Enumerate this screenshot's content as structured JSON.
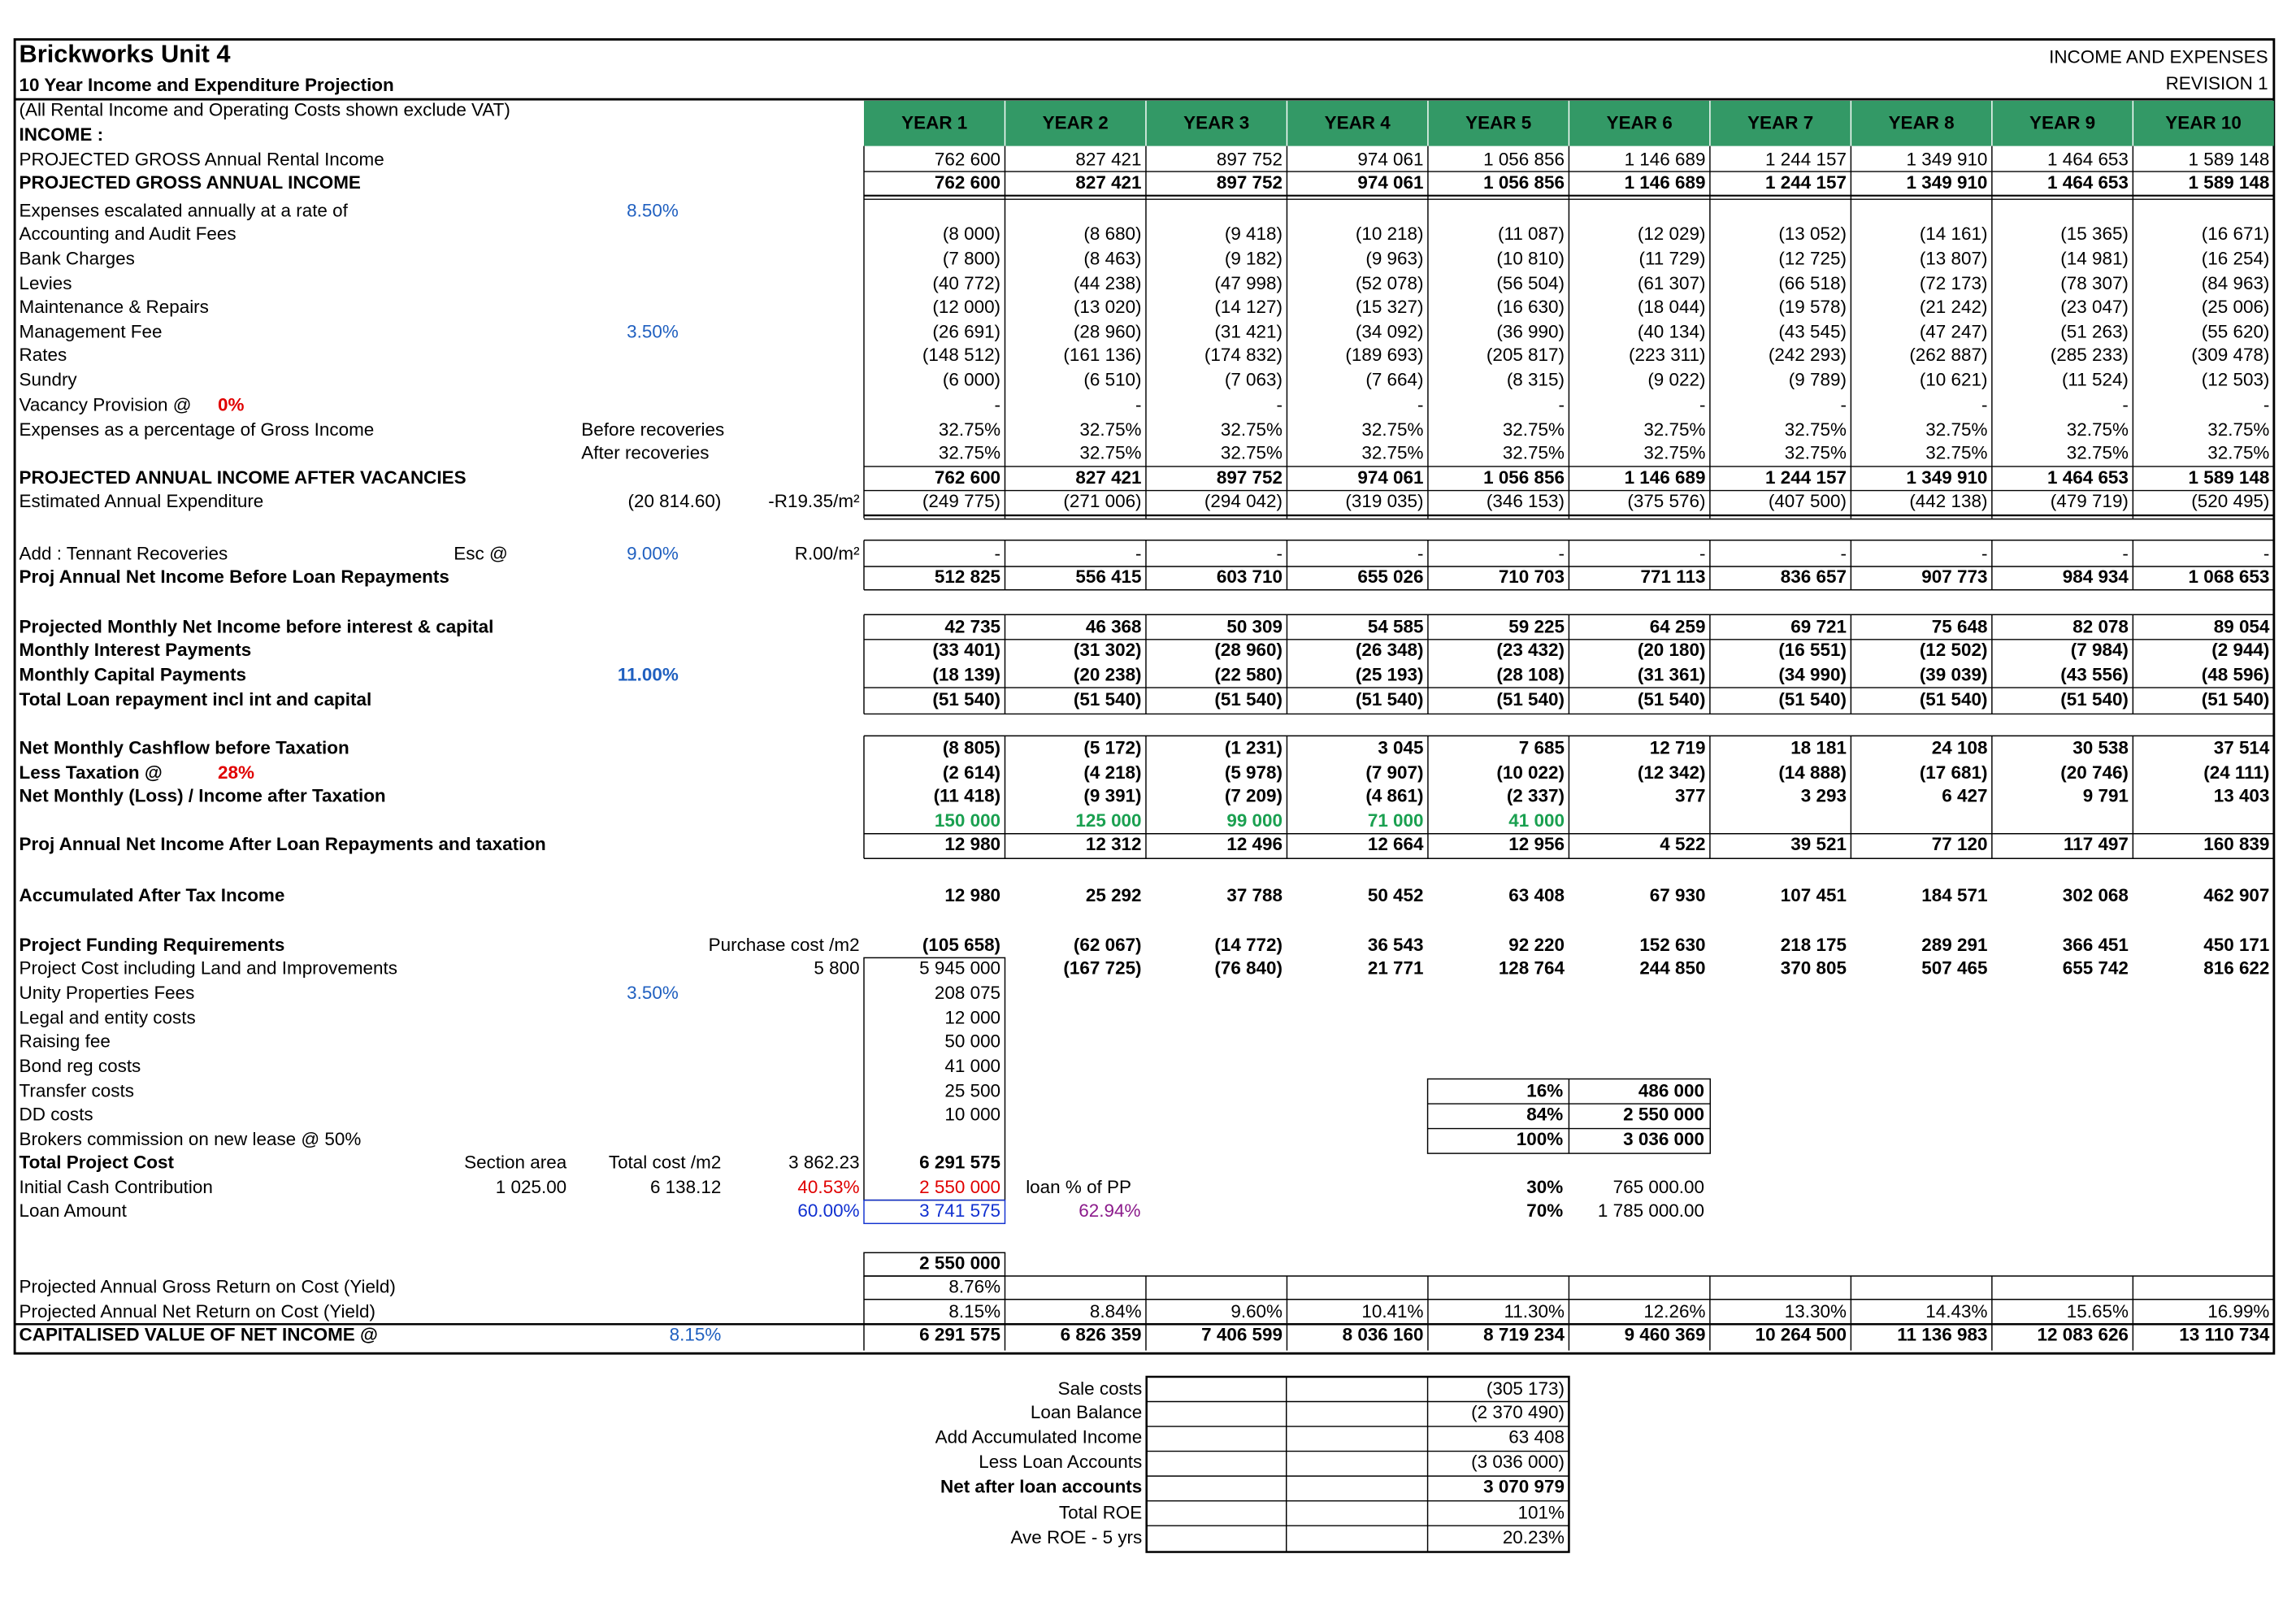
{
  "header": {
    "title": "Brickworks Unit 4",
    "subtitle": "10 Year Income and Expenditure Projection",
    "right1": "INCOME AND EXPENSES",
    "right2": "REVISION 1"
  },
  "years": [
    "YEAR 1",
    "YEAR 2",
    "YEAR 3",
    "YEAR 4",
    "YEAR 5",
    "YEAR 6",
    "YEAR 7",
    "YEAR 8",
    "YEAR 9",
    "YEAR 10"
  ],
  "rows": [
    {
      "a": "(All Rental Income and Operating Costs shown exclude VAT)"
    },
    {
      "a": "INCOME :"
    },
    {
      "a": "PROJECTED GROSS Annual Rental Income",
      "v": [
        "762 600",
        "827 421",
        "897 752",
        "974 061",
        "1 056 856",
        "1 146 689",
        "1 244 157",
        "1 349 910",
        "1 464 653",
        "1 589 148"
      ]
    },
    {
      "a": "PROJECTED GROSS ANNUAL INCOME",
      "v": [
        "762 600",
        "827 421",
        "897 752",
        "974 061",
        "1 056 856",
        "1 146 689",
        "1 244 157",
        "1 349 910",
        "1 464 653",
        "1 589 148"
      ]
    },
    {
      "a": "Expenses escalated annually at a rate of",
      "r": "8.50%"
    },
    {
      "a": "Accounting and Audit Fees",
      "v": [
        "(8 000)",
        "(8 680)",
        "(9 418)",
        "(10 218)",
        "(11 087)",
        "(12 029)",
        "(13 052)",
        "(14 161)",
        "(15 365)",
        "(16 671)"
      ]
    },
    {
      "a": "Bank Charges",
      "v": [
        "(7 800)",
        "(8 463)",
        "(9 182)",
        "(9 963)",
        "(10 810)",
        "(11 729)",
        "(12 725)",
        "(13 807)",
        "(14 981)",
        "(16 254)"
      ]
    },
    {
      "a": "Levies",
      "v": [
        "(40 772)",
        "(44 238)",
        "(47 998)",
        "(52 078)",
        "(56 504)",
        "(61 307)",
        "(66 518)",
        "(72 173)",
        "(78 307)",
        "(84 963)"
      ]
    },
    {
      "a": "Maintenance & Repairs",
      "v": [
        "(12 000)",
        "(13 020)",
        "(14 127)",
        "(15 327)",
        "(16 630)",
        "(18 044)",
        "(19 578)",
        "(21 242)",
        "(23 047)",
        "(25 006)"
      ]
    },
    {
      "a": "Management Fee",
      "r": "3.50%",
      "v": [
        "(26 691)",
        "(28 960)",
        "(31 421)",
        "(34 092)",
        "(36 990)",
        "(40 134)",
        "(43 545)",
        "(47 247)",
        "(51 263)",
        "(55 620)"
      ]
    },
    {
      "a": "Rates",
      "v": [
        "(148 512)",
        "(161 136)",
        "(174 832)",
        "(189 693)",
        "(205 817)",
        "(223 311)",
        "(242 293)",
        "(262 887)",
        "(285 233)",
        "(309 478)"
      ]
    },
    {
      "a": "Sundry",
      "v": [
        "(6 000)",
        "(6 510)",
        "(7 063)",
        "(7 664)",
        "(8 315)",
        "(9 022)",
        "(9 789)",
        "(10 621)",
        "(11 524)",
        "(12 503)"
      ]
    },
    {
      "a": "Vacancy Provision @",
      "inl": "0%",
      "v": [
        "-",
        "-",
        "-",
        "-",
        "-",
        "-",
        "-",
        "-",
        "-",
        "-"
      ]
    },
    {
      "a": "Expenses as a percentage of Gross Income",
      "bl": "Before recoveries",
      "v": [
        "32.75%",
        "32.75%",
        "32.75%",
        "32.75%",
        "32.75%",
        "32.75%",
        "32.75%",
        "32.75%",
        "32.75%",
        "32.75%"
      ]
    },
    {
      "bl": "After recoveries",
      "v": [
        "32.75%",
        "32.75%",
        "32.75%",
        "32.75%",
        "32.75%",
        "32.75%",
        "32.75%",
        "32.75%",
        "32.75%",
        "32.75%"
      ]
    },
    {
      "a": "PROJECTED ANNUAL INCOME AFTER VACANCIES",
      "v": [
        "762 600",
        "827 421",
        "897 752",
        "974 061",
        "1 056 856",
        "1 146 689",
        "1 244 157",
        "1 349 910",
        "1 464 653",
        "1 589 148"
      ]
    },
    {
      "a": "Estimated Annual Expenditure",
      "s": "(20 814.60)",
      "t": "-R19.35/m²",
      "v": [
        "(249 775)",
        "(271 006)",
        "(294 042)",
        "(319 035)",
        "(346 153)",
        "(375 576)",
        "(407 500)",
        "(442 138)",
        "(479 719)",
        "(520 495)"
      ]
    },
    {
      "a": "Add : Tennant Recoveries",
      "p": "Esc @",
      "r": "9.00%",
      "t": "R.00/m²",
      "v": [
        "-",
        "-",
        "-",
        "-",
        "-",
        "-",
        "-",
        "-",
        "-",
        "-"
      ]
    },
    {
      "a": "Proj Annual Net Income Before Loan Repayments",
      "v": [
        "512 825",
        "556 415",
        "603 710",
        "655 026",
        "710 703",
        "771 113",
        "836 657",
        "907 773",
        "984 934",
        "1 068 653"
      ]
    },
    {
      "a": "Projected Monthly Net Income before interest & capital",
      "v": [
        "42 735",
        "46 368",
        "50 309",
        "54 585",
        "59 225",
        "64 259",
        "69 721",
        "75 648",
        "82 078",
        "89 054"
      ]
    },
    {
      "a": "Monthly Interest Payments",
      "v": [
        "(33 401)",
        "(31 302)",
        "(28 960)",
        "(26 348)",
        "(23 432)",
        "(20 180)",
        "(16 551)",
        "(12 502)",
        "(7 984)",
        "(2 944)"
      ]
    },
    {
      "a": "Monthly Capital Payments",
      "r": "11.00%",
      "v": [
        "(18 139)",
        "(20 238)",
        "(22 580)",
        "(25 193)",
        "(28 108)",
        "(31 361)",
        "(34 990)",
        "(39 039)",
        "(43 556)",
        "(48 596)"
      ]
    },
    {
      "a": "Total Loan repayment incl int and capital",
      "v": [
        "(51 540)",
        "(51 540)",
        "(51 540)",
        "(51 540)",
        "(51 540)",
        "(51 540)",
        "(51 540)",
        "(51 540)",
        "(51 540)",
        "(51 540)"
      ]
    },
    {
      "a": "Net Monthly Cashflow before Taxation",
      "v": [
        "(8 805)",
        "(5 172)",
        "(1 231)",
        "3 045",
        "7 685",
        "12 719",
        "18 181",
        "24 108",
        "30 538",
        "37 514"
      ]
    },
    {
      "a": "Less Taxation @",
      "inl": "28%",
      "v": [
        "(2 614)",
        "(4 218)",
        "(5 978)",
        "(7 907)",
        "(10 022)",
        "(12 342)",
        "(14 888)",
        "(17 681)",
        "(20 746)",
        "(24 111)"
      ]
    },
    {
      "a": "Net Monthly (Loss) / Income after Taxation",
      "v": [
        "(11 418)",
        "(9 391)",
        "(7 209)",
        "(4 861)",
        "(2 337)",
        "377",
        "3 293",
        "6 427",
        "9 791",
        "13 403"
      ]
    },
    {
      "v": [
        "150 000",
        "125 000",
        "99 000",
        "71 000",
        "41 000",
        null,
        null,
        null,
        null,
        null
      ]
    },
    {
      "a": "Proj Annual Net Income After Loan Repayments and taxation",
      "v": [
        "12 980",
        "12 312",
        "12 496",
        "12 664",
        "12 956",
        "4 522",
        "39 521",
        "77 120",
        "117 497",
        "160 839"
      ]
    },
    {
      "a": "Accumulated After Tax Income",
      "v": [
        "12 980",
        "25 292",
        "37 788",
        "50 452",
        "63 408",
        "67 930",
        "107 451",
        "184 571",
        "302 068",
        "462 907"
      ]
    },
    {
      "a": "Project Funding Requirements",
      "t": "Purchase cost /m2",
      "v": [
        "(105 658)",
        "(62 067)",
        "(14 772)",
        "36 543",
        "92 220",
        "152 630",
        "218 175",
        "289 291",
        "366 451",
        "450 171"
      ]
    },
    {
      "a": "Project Cost including Land and Improvements",
      "t": "5 800",
      "v": [
        "5 945 000",
        "(167 725)",
        "(76 840)",
        "21 771",
        "128 764",
        "244 850",
        "370 805",
        "507 465",
        "655 742",
        "816 622"
      ]
    },
    {
      "a": "Unity Properties Fees",
      "r": "3.50%",
      "v": [
        "208 075",
        null,
        null,
        null,
        null,
        null,
        null,
        null,
        null,
        null
      ]
    },
    {
      "a": "Legal and entity costs",
      "v": [
        "12 000",
        null,
        null,
        null,
        null,
        null,
        null,
        null,
        null,
        null
      ]
    },
    {
      "a": "Raising fee",
      "v": [
        "50 000",
        null,
        null,
        null,
        null,
        null,
        null,
        null,
        null,
        null
      ]
    },
    {
      "a": "Bond reg costs",
      "v": [
        "41 000",
        null,
        null,
        null,
        null,
        null,
        null,
        null,
        null,
        null
      ]
    },
    {
      "a": "Transfer costs",
      "u": "16%",
      "w": "486 000",
      "v": [
        "25 500",
        null,
        null,
        null,
        null,
        null,
        null,
        null,
        null,
        null
      ]
    },
    {
      "a": "DD costs",
      "u": "84%",
      "w": "2 550 000",
      "v": [
        "10 000",
        null,
        null,
        null,
        null,
        null,
        null,
        null,
        null,
        null
      ]
    },
    {
      "a": "Brokers commission on new lease @ 50%",
      "u": "100%",
      "w": "3 036 000"
    },
    {
      "a": "Total Project Cost",
      "q": "Section area",
      "s": "Total cost /m2",
      "t": "3 862.23",
      "v": [
        "6 291 575",
        null,
        null,
        null,
        null,
        null,
        null,
        null,
        null,
        null
      ]
    },
    {
      "a": "Initial Cash Contribution",
      "q": "1 025.00",
      "s": "6 138.12",
      "t": "40.53%",
      "m": "loan  % of PP",
      "u": "30%",
      "w": "765 000.00",
      "v": [
        "2 550 000",
        null,
        null,
        null,
        null,
        null,
        null,
        null,
        null,
        null
      ]
    },
    {
      "a": "Loan Amount",
      "t": "60.00%",
      "n": "62.94%",
      "u": "70%",
      "w": "1 785 000.00",
      "v": [
        "3 741 575",
        null,
        null,
        null,
        null,
        null,
        null,
        null,
        null,
        null
      ]
    },
    {
      "v": [
        "2 550 000",
        null,
        null,
        null,
        null,
        null,
        null,
        null,
        null,
        null
      ]
    },
    {
      "a": "Projected Annual Gross Return on Cost (Yield)",
      "v": [
        "8.76%",
        null,
        null,
        null,
        null,
        null,
        null,
        null,
        null,
        null
      ]
    },
    {
      "a": "Projected Annual Net Return on Cost (Yield)",
      "v": [
        "8.15%",
        "8.84%",
        "9.60%",
        "10.41%",
        "11.30%",
        "12.26%",
        "13.30%",
        "14.43%",
        "15.65%",
        "16.99%"
      ]
    },
    {
      "a": "CAPITALISED VALUE OF NET INCOME @",
      "s": "8.15%",
      "v": [
        "6 291 575",
        "6 826 359",
        "7 406 599",
        "8 036 160",
        "8 719 234",
        "9 460 369",
        "10 264 500",
        "11 136 983",
        "12 083 626",
        "13 110 734"
      ]
    }
  ],
  "summary": [
    {
      "label": "Sale costs",
      "value": "(305 173)"
    },
    {
      "label": "Loan Balance",
      "value": "(2 370 490)"
    },
    {
      "label": "Add Accumulated Income",
      "value": "63 408"
    },
    {
      "label": "Less Loan Accounts",
      "value": "(3 036 000)"
    },
    {
      "label": "Net after loan accounts",
      "value": "3 070 979"
    },
    {
      "label": "Total ROE",
      "value": "101%"
    },
    {
      "label": "Ave ROE - 5 yrs",
      "value": "20.23%"
    }
  ]
}
